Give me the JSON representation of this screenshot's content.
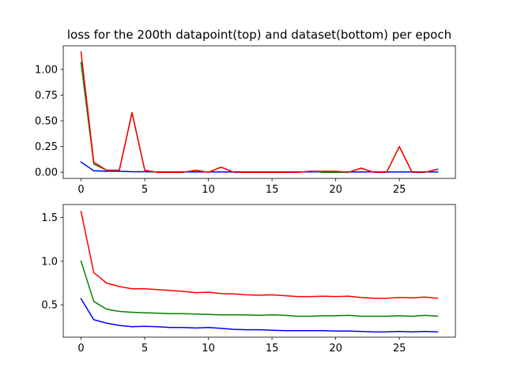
{
  "figure": {
    "title": "loss for the 200th datapoint(top) and dataset(bottom) per epoch"
  },
  "chart_data": [
    {
      "type": "line",
      "title": "loss for the 200th datapoint(top) and dataset(bottom) per epoch",
      "xlabel": "",
      "ylabel": "",
      "xlim": [
        -1.4,
        29.4
      ],
      "ylim": [
        -0.06,
        1.23
      ],
      "xticks": [
        0,
        5,
        10,
        15,
        20,
        25
      ],
      "yticks": [
        0.0,
        0.25,
        0.5,
        0.75,
        1.0
      ],
      "ytick_labels": [
        "0.00",
        "0.25",
        "0.50",
        "0.75",
        "1.00"
      ],
      "xtick_labels": [
        "0",
        "5",
        "10",
        "15",
        "20",
        "25"
      ],
      "grid": false,
      "x": [
        0,
        1,
        2,
        3,
        4,
        5,
        6,
        7,
        8,
        9,
        10,
        11,
        12,
        13,
        14,
        15,
        16,
        17,
        18,
        19,
        20,
        21,
        22,
        23,
        24,
        25,
        26,
        27,
        28
      ],
      "series": [
        {
          "color": "#0000ff",
          "values": [
            0.1,
            0.015,
            0.01,
            0.01,
            0.005,
            0.005,
            0.003,
            0.003,
            0.003,
            0.003,
            0.003,
            0.003,
            0.003,
            0.003,
            0.003,
            0.003,
            0.003,
            0.003,
            0.003,
            0.003,
            0.003,
            0.003,
            0.003,
            0.003,
            0.003,
            0.003,
            0.003,
            0.003,
            0.003
          ]
        },
        {
          "color": "#008000",
          "values": [
            1.07,
            0.08,
            0.02,
            0.02,
            0.58,
            0.02,
            0.0,
            0.0,
            0.0,
            0.02,
            0.0,
            0.05,
            0.0,
            0.0,
            0.0,
            0.0,
            0.0,
            0.0,
            0.01,
            0.0,
            0.0,
            0.0,
            0.04,
            0.0,
            0.0,
            0.25,
            0.0,
            0.0,
            0.03
          ]
        },
        {
          "color": "#ff0000",
          "values": [
            1.17,
            0.1,
            0.02,
            0.02,
            0.58,
            0.02,
            0.0,
            0.0,
            0.0,
            0.02,
            0.0,
            0.05,
            0.0,
            0.0,
            0.0,
            0.0,
            0.0,
            0.0,
            0.01,
            0.01,
            0.01,
            0.0,
            0.04,
            0.0,
            0.0,
            0.25,
            0.0,
            0.0,
            0.03
          ]
        }
      ]
    },
    {
      "type": "line",
      "title": "",
      "xlabel": "",
      "ylabel": "",
      "xlim": [
        -1.4,
        29.4
      ],
      "ylim": [
        0.13,
        1.65
      ],
      "xticks": [
        0,
        5,
        10,
        15,
        20,
        25
      ],
      "yticks": [
        0.5,
        1.0,
        1.5
      ],
      "ytick_labels": [
        "0.5",
        "1.0",
        "1.5"
      ],
      "xtick_labels": [
        "0",
        "5",
        "10",
        "15",
        "20",
        "25"
      ],
      "grid": false,
      "x": [
        0,
        1,
        2,
        3,
        4,
        5,
        6,
        7,
        8,
        9,
        10,
        11,
        12,
        13,
        14,
        15,
        16,
        17,
        18,
        19,
        20,
        21,
        22,
        23,
        24,
        25,
        26,
        27,
        28
      ],
      "series": [
        {
          "color": "#0000ff",
          "values": [
            0.57,
            0.33,
            0.29,
            0.265,
            0.25,
            0.255,
            0.25,
            0.24,
            0.24,
            0.235,
            0.24,
            0.23,
            0.22,
            0.215,
            0.215,
            0.21,
            0.205,
            0.205,
            0.205,
            0.205,
            0.2,
            0.2,
            0.195,
            0.19,
            0.19,
            0.195,
            0.19,
            0.195,
            0.19
          ]
        },
        {
          "color": "#008000",
          "values": [
            1.0,
            0.54,
            0.45,
            0.425,
            0.415,
            0.41,
            0.405,
            0.4,
            0.4,
            0.395,
            0.39,
            0.385,
            0.385,
            0.385,
            0.38,
            0.385,
            0.38,
            0.37,
            0.37,
            0.375,
            0.375,
            0.38,
            0.37,
            0.37,
            0.37,
            0.375,
            0.37,
            0.38,
            0.37
          ]
        },
        {
          "color": "#ff0000",
          "values": [
            1.57,
            0.87,
            0.75,
            0.71,
            0.685,
            0.685,
            0.675,
            0.665,
            0.655,
            0.64,
            0.645,
            0.63,
            0.625,
            0.615,
            0.61,
            0.615,
            0.605,
            0.595,
            0.595,
            0.6,
            0.595,
            0.6,
            0.585,
            0.575,
            0.575,
            0.585,
            0.58,
            0.59,
            0.575
          ]
        }
      ]
    }
  ]
}
